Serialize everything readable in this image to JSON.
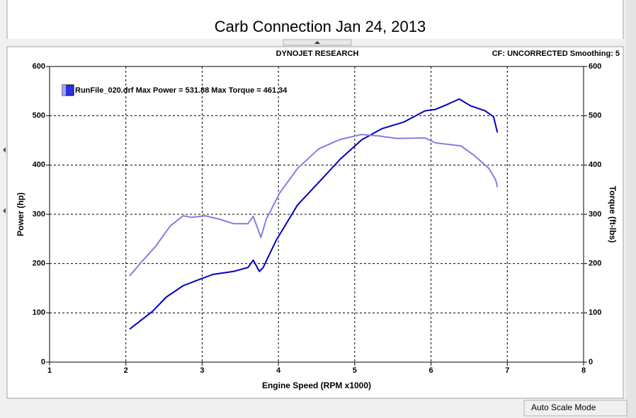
{
  "chart_data": {
    "type": "line",
    "title": "Carb Connection Jan 24, 2013",
    "header_left": "DYNOJET RESEARCH",
    "header_right": "CF: UNCORRECTED  Smoothing: 5",
    "legend_text": "RunFile_020.drf Max Power = 531.88 Max Torque = 461.34",
    "xlabel": "Engine Speed (RPM x1000)",
    "ylabel": "Power (hp)",
    "y2label": "Torque (ft-lbs)",
    "status": "Auto Scale Mode",
    "xlim": [
      1,
      8
    ],
    "xticks": [
      1,
      2,
      3,
      4,
      5,
      6,
      7,
      8
    ],
    "ylim": [
      0,
      600
    ],
    "yticks": [
      0,
      100,
      200,
      300,
      400,
      500,
      600
    ],
    "y2lim": [
      0,
      600
    ],
    "y2ticks": [
      0,
      100,
      200,
      300,
      400,
      500,
      600
    ],
    "grid": true,
    "series": [
      {
        "color": "#0000c0",
        "x": [
          2.05,
          2.35,
          2.53,
          2.75,
          2.9,
          3.14,
          3.41,
          3.6,
          3.67,
          3.75,
          3.8,
          3.97,
          4.25,
          4.53,
          4.81,
          5.09,
          5.36,
          5.64,
          5.92,
          6.06,
          6.2,
          6.37,
          6.52,
          6.71,
          6.82,
          6.87
        ],
        "values": [
          67,
          103,
          132,
          155,
          164,
          178,
          184,
          192,
          207,
          184,
          192,
          247,
          319,
          365,
          412,
          451,
          474,
          487,
          510,
          513,
          522,
          534,
          520,
          510,
          498,
          466
        ]
      },
      {
        "color": "#8080e0",
        "axis": "y2",
        "x": [
          2.05,
          2.21,
          2.39,
          2.58,
          2.75,
          2.86,
          3.04,
          3.23,
          3.41,
          3.6,
          3.67,
          3.77,
          3.84,
          4.02,
          4.25,
          4.53,
          4.81,
          5.09,
          5.32,
          5.55,
          5.92,
          6.06,
          6.39,
          6.57,
          6.76,
          6.85,
          6.87
        ],
        "values": [
          175,
          204,
          235,
          276,
          297,
          294,
          297,
          290,
          281,
          281,
          296,
          253,
          290,
          344,
          393,
          433,
          452,
          462,
          459,
          454,
          455,
          445,
          439,
          419,
          393,
          369,
          355
        ]
      }
    ]
  }
}
